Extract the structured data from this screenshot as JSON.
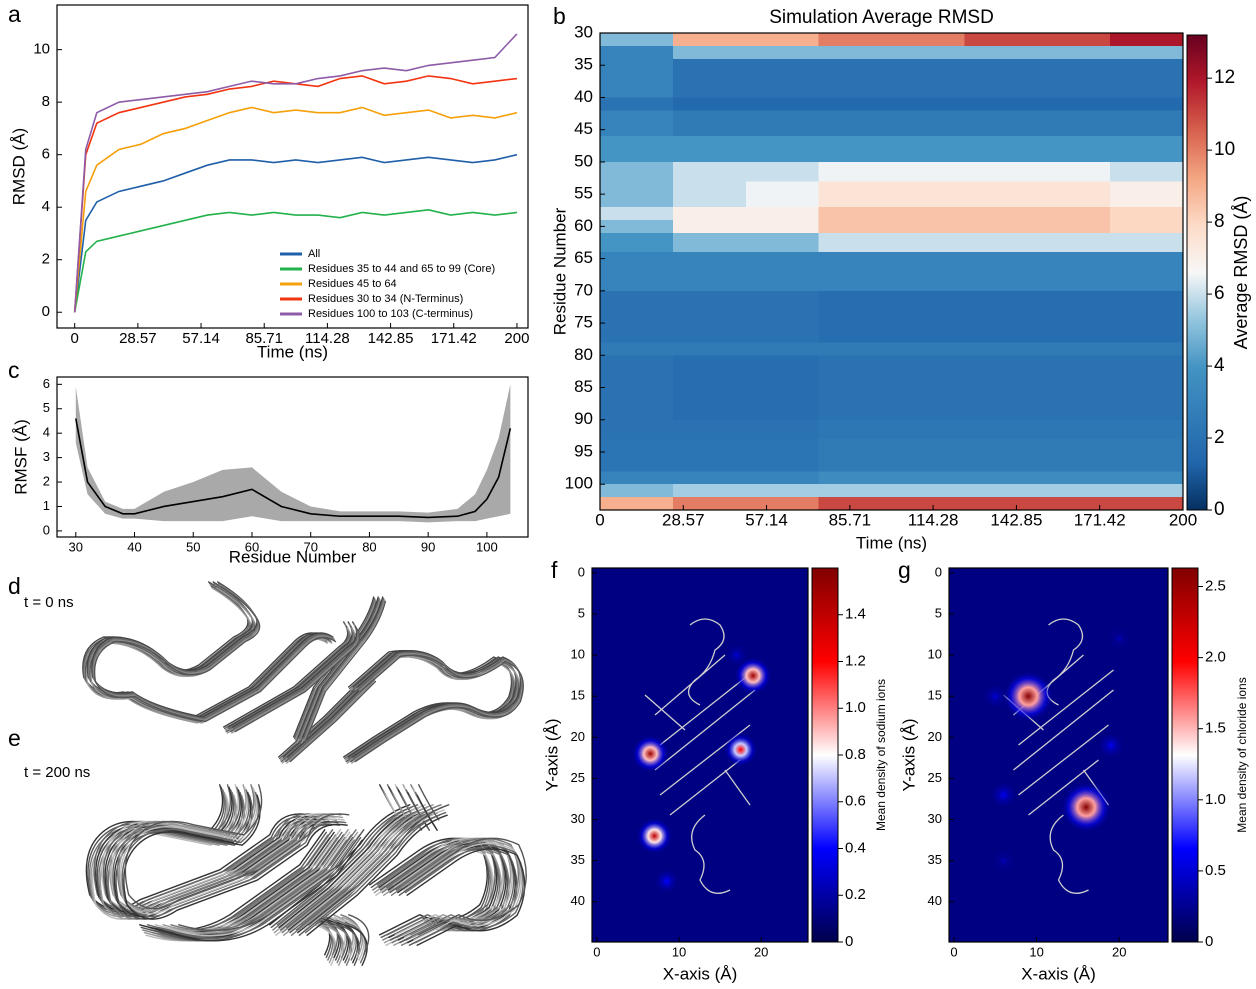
{
  "chart_data": [
    {
      "type": "line",
      "label": "a",
      "xlabel": "Time (ns)",
      "ylabel": "RMSD (Å)",
      "x": [
        0,
        5,
        10,
        20,
        30,
        40,
        50,
        60,
        70,
        80,
        90,
        100,
        110,
        120,
        130,
        140,
        150,
        160,
        170,
        180,
        190,
        200
      ],
      "series": [
        {
          "name": "All",
          "color": "#1f5fa8",
          "values": [
            0,
            3.5,
            4.2,
            4.6,
            4.8,
            5.0,
            5.3,
            5.6,
            5.8,
            5.8,
            5.7,
            5.8,
            5.7,
            5.8,
            5.9,
            5.7,
            5.8,
            5.9,
            5.8,
            5.7,
            5.8,
            6.0
          ]
        },
        {
          "name": "Residues 35 to 44 and 65 to 99 (Core)",
          "color": "#22b14c",
          "values": [
            0,
            2.3,
            2.7,
            2.9,
            3.1,
            3.3,
            3.5,
            3.7,
            3.8,
            3.7,
            3.8,
            3.7,
            3.7,
            3.6,
            3.8,
            3.7,
            3.8,
            3.9,
            3.7,
            3.8,
            3.7,
            3.8
          ]
        },
        {
          "name": "Residues 45 to 64",
          "color": "#f5a00a",
          "values": [
            0,
            4.6,
            5.6,
            6.2,
            6.4,
            6.8,
            7.0,
            7.3,
            7.6,
            7.8,
            7.6,
            7.7,
            7.6,
            7.6,
            7.8,
            7.5,
            7.6,
            7.7,
            7.4,
            7.5,
            7.4,
            7.6
          ]
        },
        {
          "name": "Residues 30 to 34 (N-Terminus)",
          "color": "#f23410",
          "values": [
            0,
            6.0,
            7.2,
            7.6,
            7.8,
            8.0,
            8.2,
            8.3,
            8.5,
            8.6,
            8.8,
            8.7,
            8.6,
            8.9,
            9.0,
            8.7,
            8.8,
            9.0,
            8.9,
            8.7,
            8.8,
            8.9
          ]
        },
        {
          "name": "Residues 100 to 103 (C-terminus)",
          "color": "#8e5ba8",
          "values": [
            0,
            6.2,
            7.6,
            8.0,
            8.1,
            8.2,
            8.3,
            8.4,
            8.6,
            8.8,
            8.7,
            8.7,
            8.9,
            9.0,
            9.2,
            9.3,
            9.2,
            9.4,
            9.5,
            9.6,
            9.7,
            10.6
          ]
        }
      ],
      "xlim": [
        -8,
        205
      ],
      "xticks": [
        0,
        28.57,
        57.14,
        85.71,
        114.28,
        142.85,
        171.42,
        200
      ],
      "ylim": [
        -0.6,
        11.7
      ],
      "yticks": [
        0,
        2,
        4,
        6,
        8,
        10
      ],
      "legend": "lower right"
    },
    {
      "type": "heatmap",
      "label": "b",
      "title": "Simulation Average RMSD",
      "xlabel": "Time (ns)",
      "ylabel": "Residue Number",
      "x": [
        0,
        25,
        50,
        75,
        100,
        125,
        150,
        175
      ],
      "y": [
        30,
        32,
        34,
        40,
        42,
        46,
        50,
        53,
        57,
        59,
        61,
        64,
        70,
        78,
        80,
        90,
        93,
        98,
        100,
        102
      ],
      "values": [
        [
          5,
          9,
          9,
          10,
          10,
          11,
          11,
          12
        ],
        [
          3,
          5,
          5,
          5,
          5,
          5,
          5,
          5
        ],
        [
          3,
          2,
          2,
          2,
          2,
          2,
          2,
          2
        ],
        [
          2,
          1.5,
          1.5,
          1.5,
          1.5,
          1.5,
          1.5,
          1.5
        ],
        [
          3,
          2.5,
          2.5,
          2.5,
          2.5,
          2.5,
          2.5,
          2.5
        ],
        [
          4,
          4,
          4,
          4,
          4,
          4,
          4,
          4
        ],
        [
          5,
          6,
          6,
          6.5,
          6.5,
          6.5,
          6.5,
          6
        ],
        [
          5,
          6,
          6.5,
          7.5,
          7.5,
          7.5,
          7.5,
          7
        ],
        [
          6,
          7,
          7,
          8.5,
          8.5,
          8.5,
          8.5,
          8
        ],
        [
          5,
          7,
          7,
          8.5,
          8.5,
          8.5,
          8.5,
          8
        ],
        [
          4,
          5,
          5,
          6,
          6,
          6,
          6,
          6
        ],
        [
          3,
          3,
          3,
          3,
          3,
          3,
          3,
          3
        ],
        [
          2,
          2,
          2,
          1.8,
          1.8,
          1.8,
          1.8,
          1.8
        ],
        [
          2.5,
          2.5,
          2.5,
          2.5,
          2.5,
          2.5,
          2.5,
          2.5
        ],
        [
          2,
          1.8,
          1.8,
          2,
          2,
          2,
          2,
          2
        ],
        [
          2,
          2,
          2,
          2.3,
          2.3,
          2.3,
          2.3,
          2.3
        ],
        [
          2.2,
          2.2,
          2.2,
          2.5,
          2.5,
          2.5,
          2.5,
          2.5
        ],
        [
          3,
          3,
          3,
          3.5,
          3.5,
          3.5,
          3.5,
          3.5
        ],
        [
          5,
          5.5,
          5.5,
          5.5,
          5.5,
          5.5,
          5.5,
          5.5
        ],
        [
          9,
          10,
          10,
          11,
          11,
          11,
          11,
          11
        ]
      ],
      "xlim": [
        0,
        200
      ],
      "xticks": [
        0,
        28.57,
        57.14,
        85.71,
        114.28,
        142.85,
        171.42,
        200
      ],
      "ylim": [
        30,
        104
      ],
      "yticks": [
        30,
        35,
        40,
        45,
        50,
        55,
        60,
        65,
        70,
        75,
        80,
        85,
        90,
        95,
        100
      ],
      "colormap": "RdBu_r",
      "colorbar": {
        "label": "Average RMSD (Å)",
        "lim": [
          0,
          13.2
        ],
        "ticks": [
          0,
          2,
          4,
          6,
          8,
          10,
          12
        ]
      }
    },
    {
      "type": "line",
      "label": "c",
      "xlabel": "Residue Number",
      "ylabel": "RMSF (Å)",
      "x": [
        30,
        32,
        35,
        38,
        40,
        45,
        50,
        55,
        60,
        65,
        70,
        75,
        80,
        85,
        90,
        95,
        98,
        100,
        102,
        104
      ],
      "series": [
        {
          "color": "#000000",
          "values": [
            4.6,
            2.0,
            1.0,
            0.7,
            0.7,
            1.0,
            1.2,
            1.4,
            1.7,
            1.0,
            0.7,
            0.6,
            0.6,
            0.6,
            0.55,
            0.6,
            0.8,
            1.3,
            2.2,
            4.2
          ]
        }
      ],
      "band": {
        "color": "#a9a9a9",
        "lower": [
          3.6,
          1.5,
          0.7,
          0.5,
          0.5,
          0.4,
          0.4,
          0.4,
          0.6,
          0.4,
          0.4,
          0.4,
          0.4,
          0.4,
          0.35,
          0.4,
          0.4,
          0.5,
          0.6,
          0.7
        ],
        "upper": [
          5.9,
          2.6,
          1.2,
          0.9,
          0.9,
          1.6,
          2.0,
          2.5,
          2.6,
          1.6,
          1.0,
          0.8,
          0.8,
          0.8,
          0.75,
          0.9,
          1.5,
          2.5,
          3.8,
          6.0
        ]
      },
      "xlim": [
        26.8,
        107
      ],
      "xticks": [
        30,
        40,
        50,
        60,
        70,
        80,
        90,
        100
      ],
      "ylim": [
        -0.25,
        6.3
      ],
      "yticks": [
        0,
        1,
        2,
        3,
        4,
        5,
        6
      ]
    },
    {
      "type": "density",
      "label": "f",
      "xlabel": "X-axis (Å)",
      "ylabel": "Y-axis (Å)",
      "colormap": "seismic",
      "background": 0.12,
      "peaks": [
        {
          "x": 19,
          "y": 12.5,
          "value": 1.5
        },
        {
          "x": 6.5,
          "y": 22,
          "value": 1.5
        },
        {
          "x": 17.5,
          "y": 21.5,
          "value": 1.2
        },
        {
          "x": 7,
          "y": 32,
          "value": 1.4
        },
        {
          "x": 8.5,
          "y": 37.5,
          "value": 0.4
        },
        {
          "x": 17,
          "y": 10,
          "value": 0.3
        }
      ],
      "xlim": [
        -0.6,
        25.7
      ],
      "xticks": [
        0,
        10,
        20
      ],
      "ylim": [
        -0.6,
        44.9
      ],
      "yticks": [
        0,
        5,
        10,
        15,
        20,
        25,
        30,
        35,
        40
      ],
      "colorbar": {
        "label": "Mean density of sodium ions",
        "lim": [
          0,
          1.6
        ],
        "ticks": [
          0,
          0.2,
          0.4,
          0.6,
          0.8,
          {
            "value": 1,
            "label": "1.0"
          },
          1.2,
          1.4
        ]
      }
    },
    {
      "type": "density",
      "label": "g",
      "xlabel": "X-axis (Å)",
      "ylabel": "Y-axis (Å)",
      "colormap": "seismic",
      "background": 0.2,
      "peaks": [
        {
          "x": 9,
          "y": 15,
          "value": 2.6
        },
        {
          "x": 16,
          "y": 28.5,
          "value": 2.6
        },
        {
          "x": 19,
          "y": 21,
          "value": 0.6
        },
        {
          "x": 6,
          "y": 27,
          "value": 0.6
        },
        {
          "x": 6,
          "y": 35,
          "value": 0.4
        },
        {
          "x": 20,
          "y": 8,
          "value": 0.4
        },
        {
          "x": 5,
          "y": 15,
          "value": 0.5
        }
      ],
      "xlim": [
        -0.6,
        25.9
      ],
      "xticks": [
        0,
        10,
        20
      ],
      "ylim": [
        -0.6,
        44.9
      ],
      "yticks": [
        0,
        5,
        10,
        15,
        20,
        25,
        30,
        35,
        40
      ],
      "colorbar": {
        "label": "Mean density of chloride ions",
        "lim": [
          0,
          2.63
        ],
        "ticks": [
          0,
          0.5,
          {
            "value": 1,
            "label": "1.0"
          },
          1.5,
          {
            "value": 2,
            "label": "2.0"
          },
          2.5
        ]
      }
    }
  ],
  "structures": [
    {
      "label": "d",
      "caption": "t = 0 ns"
    },
    {
      "label": "e",
      "caption": "t = 200 ns"
    }
  ]
}
